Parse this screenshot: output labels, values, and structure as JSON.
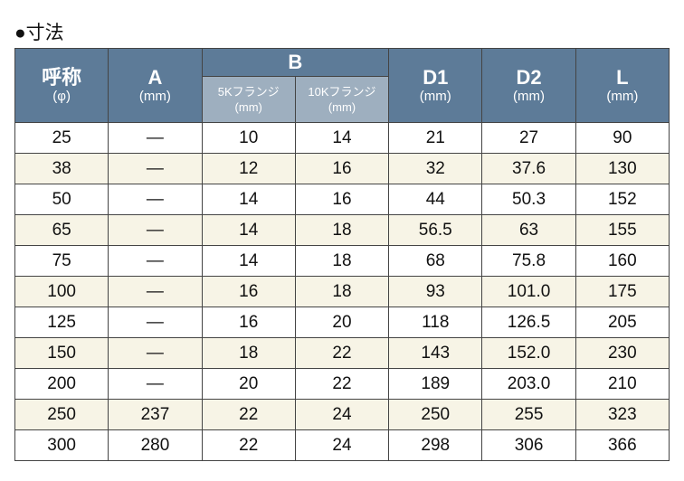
{
  "title": "●寸法",
  "headers": {
    "nominal": "呼称",
    "nominal_unit": "(φ)",
    "a": "A",
    "a_unit": "(mm)",
    "b": "B",
    "b5k": "5Kフランジ",
    "b5k_unit": "(mm)",
    "b10k": "10Kフランジ",
    "b10k_unit": "(mm)",
    "d1": "D1",
    "d1_unit": "(mm)",
    "d2": "D2",
    "d2_unit": "(mm)",
    "l": "L",
    "l_unit": "(mm)"
  },
  "rows": [
    [
      "25",
      "—",
      "10",
      "14",
      "21",
      "27",
      "90"
    ],
    [
      "38",
      "—",
      "12",
      "16",
      "32",
      "37.6",
      "130"
    ],
    [
      "50",
      "—",
      "14",
      "16",
      "44",
      "50.3",
      "152"
    ],
    [
      "65",
      "—",
      "14",
      "18",
      "56.5",
      "63",
      "155"
    ],
    [
      "75",
      "—",
      "14",
      "18",
      "68",
      "75.8",
      "160"
    ],
    [
      "100",
      "—",
      "16",
      "18",
      "93",
      "101.0",
      "175"
    ],
    [
      "125",
      "—",
      "16",
      "20",
      "118",
      "126.5",
      "205"
    ],
    [
      "150",
      "—",
      "18",
      "22",
      "143",
      "152.0",
      "230"
    ],
    [
      "200",
      "—",
      "20",
      "22",
      "189",
      "203.0",
      "210"
    ],
    [
      "250",
      "237",
      "22",
      "24",
      "250",
      "255",
      "323"
    ],
    [
      "300",
      "280",
      "22",
      "24",
      "298",
      "306",
      "366"
    ]
  ],
  "colors": {
    "header": "#5d7b98",
    "subheader": "#9eafbf",
    "alt_row": "#f7f4e6"
  }
}
